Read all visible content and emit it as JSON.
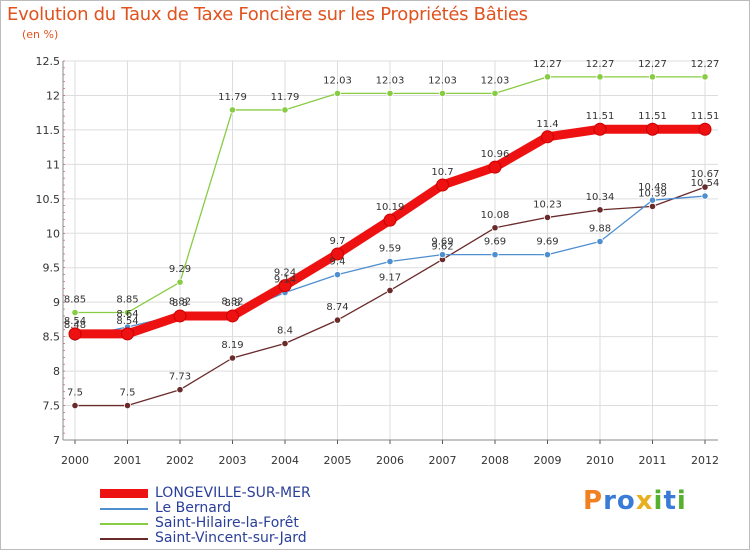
{
  "chart_data": {
    "type": "line",
    "title": "Evolution du Taux de Taxe Foncière sur les Propriétés Bâties",
    "subtitle": "(en %)",
    "xlabel": "",
    "ylabel": "",
    "ylim": [
      7,
      12.5
    ],
    "yticks": [
      "7",
      "7.5",
      "8",
      "8.5",
      "9",
      "9.5",
      "10",
      "10.5",
      "11",
      "11.5",
      "12",
      "12.5"
    ],
    "grid": true,
    "legend_position": "bottom-left",
    "categories": [
      "2000",
      "2001",
      "2002",
      "2003",
      "2004",
      "2005",
      "2006",
      "2007",
      "2008",
      "2009",
      "2010",
      "2011",
      "2012"
    ],
    "series": [
      {
        "name": "LONGEVILLE-SUR-MER",
        "color": "#ee1111",
        "values": [
          8.54,
          8.54,
          8.8,
          8.8,
          9.24,
          9.7,
          10.19,
          10.7,
          10.96,
          11.4,
          11.51,
          11.51,
          11.51
        ],
        "labels": [
          "8.54",
          "8.54",
          "8.8",
          "8.8",
          "9.24",
          "9.7",
          "10.19",
          "10.7",
          "10.96",
          "11.4",
          "11.51",
          "11.51",
          "11.51"
        ]
      },
      {
        "name": "Le Bernard",
        "color": "#4f8fd0",
        "values": [
          8.48,
          8.64,
          8.82,
          8.82,
          9.14,
          9.4,
          9.59,
          9.69,
          9.69,
          9.69,
          9.88,
          10.48,
          10.54
        ],
        "labels": [
          "8.48",
          "8.64",
          "8.82",
          "8.82",
          "9.14",
          "9.4",
          "9.59",
          "9.69",
          "9.69",
          "9.69",
          "9.88",
          "10.48",
          "10.54"
        ]
      },
      {
        "name": "Saint-Hilaire-la-Forêt",
        "color": "#88cc44",
        "values": [
          8.85,
          8.85,
          9.29,
          11.79,
          11.79,
          12.03,
          12.03,
          12.03,
          12.03,
          12.27,
          12.27,
          12.27,
          12.27
        ],
        "labels": [
          "8.85",
          "8.85",
          "9.29",
          "11.79",
          "11.79",
          "12.03",
          "12.03",
          "12.03",
          "12.03",
          "12.27",
          "12.27",
          "12.27",
          "12.27"
        ]
      },
      {
        "name": "Saint-Vincent-sur-Jard",
        "color": "#6a2a2a",
        "values": [
          7.5,
          7.5,
          7.73,
          8.19,
          8.4,
          8.74,
          9.17,
          9.62,
          10.08,
          10.23,
          10.34,
          10.39,
          10.67
        ],
        "labels": [
          "7.5",
          "7.5",
          "7.73",
          "8.19",
          "8.4",
          "8.74",
          "9.17",
          "9.62",
          "10.08",
          "10.23",
          "10.34",
          "10.39",
          "10.67"
        ]
      }
    ]
  },
  "logo": {
    "letters": [
      "P",
      "r",
      "o",
      "x",
      "i",
      "t",
      "i"
    ],
    "colors": [
      "#f08020",
      "#3b7bd8",
      "#3b7bd8",
      "#e8b020",
      "#55b030",
      "#3b7bd8",
      "#55b030"
    ]
  }
}
